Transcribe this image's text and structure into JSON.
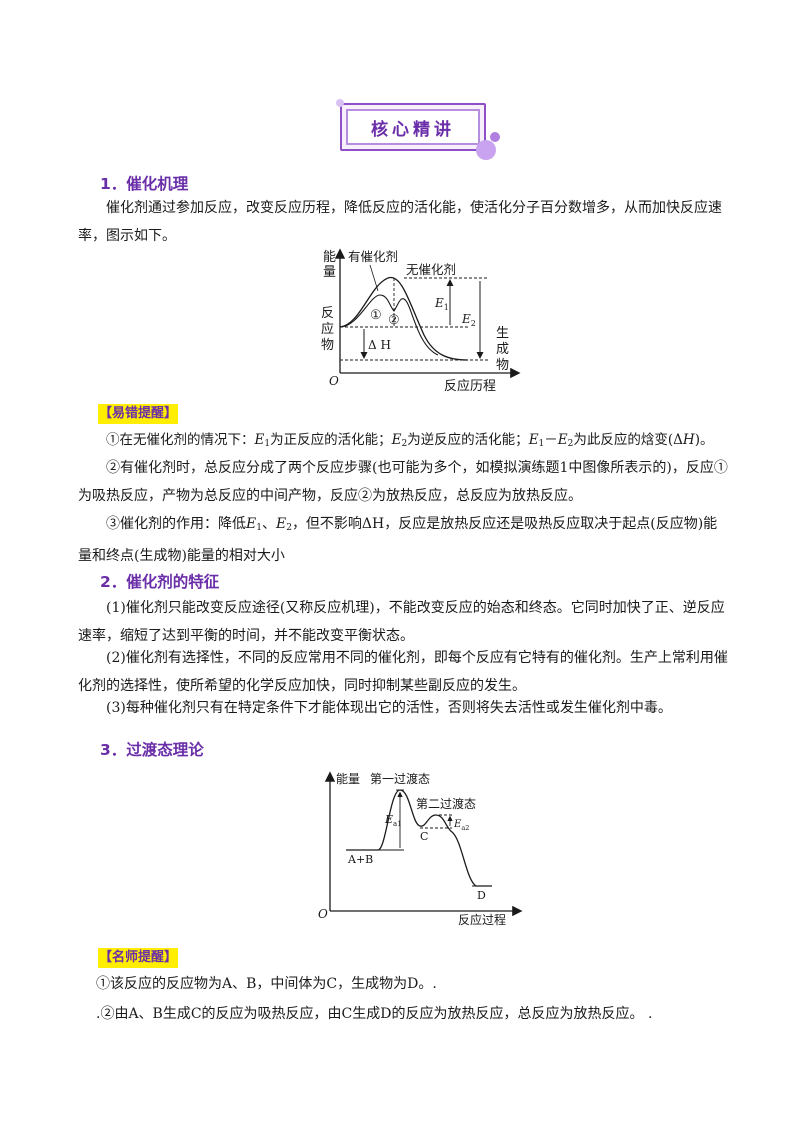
{
  "banner": {
    "title": "核心精讲"
  },
  "section1": {
    "heading": "1．催化机理",
    "intro": "催化剂通过参加反应，改变反应历程，降低反应的活化能，使活化分子百分数增多，从而加快反应速率，图示如下。",
    "figure": {
      "y_label": "能\n量",
      "x_label": "反应历程",
      "origin": "O",
      "reactants_label": "反\n应\n物",
      "products_label": "生\n成\n物",
      "catalyzed_label": "有催化剂",
      "uncatalyzed_label": "无催化剂",
      "step1": "①",
      "step2": "②",
      "e1": "E",
      "e1_sub": "1",
      "e2": "E",
      "e2_sub": "2",
      "dh": "Δ H"
    },
    "tip_label": "【易错提醒】",
    "tips": [
      {
        "a": "①在无催化剂的情况下：",
        "b": "E",
        "b_sub": "1",
        "c": "为正反应的活化能；",
        "d": "E",
        "d_sub": "2",
        "e": "为逆反应的活化能；",
        "f": "E",
        "f_sub": "1",
        "g": "－",
        "h": "E",
        "h_sub": "2",
        "i": "为此反应的焓变(Δ",
        "j": "H",
        "k": ")。"
      },
      {
        "text": "②有催化剂时，总反应分成了两个反应步骤(也可能为多个，如模拟演练题1中图像所表示的)，反应①为吸热反应，产物为总反应的中间产物，反应②为放热反应，总反应为放热反应。"
      },
      {
        "a": "③催化剂的作用：降低",
        "b": "E",
        "b_sub": "1",
        "c": "、",
        "d": "E",
        "d_sub": "2",
        "e": "，但不影响ΔH，反应是放热反应还是吸热反应取决于起点(反应物)能量和终点(生成物)能量的相对大小"
      }
    ]
  },
  "section2": {
    "heading": "2．催化剂的特征",
    "items": [
      "(1)催化剂只能改变反应途径(又称反应机理)，不能改变反应的始态和终态。它同时加快了正、逆反应速率，缩短了达到平衡的时间，并不能改变平衡状态。",
      "(2)催化剂有选择性，不同的反应常用不同的催化剂，即每个反应有它特有的催化剂。生产上常利用催化剂的选择性，使所希望的化学反应加快，同时抑制某些副反应的发生。",
      "(3)每种催化剂只有在特定条件下才能体现出它的活性，否则将失去活性或发生催化剂中毒。"
    ]
  },
  "section3": {
    "heading": "3．过渡态理论",
    "figure": {
      "y_label": "能量",
      "x_label": "反应过程",
      "origin": "O",
      "ts1": "第一过渡态",
      "ts2": "第二过渡态",
      "ea1": "E",
      "ea1_sub": "a1",
      "ea2": "E",
      "ea2_sub": "a2",
      "start": "A+B",
      "intermediate": "C",
      "end": "D"
    },
    "tip_label": "【名师提醒】",
    "tips": [
      "①该反应的反应物为A、B，中间体为C，生成物为D。.",
      ".②由A、B生成C的反应为吸热反应，由C生成D的反应为放热反应，总反应为放热反应。    ."
    ]
  }
}
